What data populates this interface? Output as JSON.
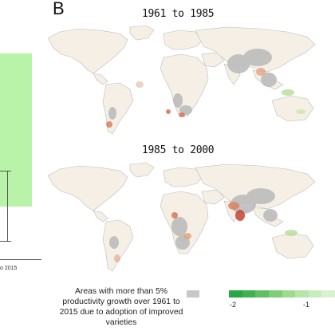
{
  "panel_a": {
    "tick_label": "o 2015"
  },
  "panel_b": {
    "letter": "B",
    "maps": [
      {
        "title": "1961 to 1985"
      },
      {
        "title": "1985 to 2000"
      }
    ],
    "legend": {
      "caption": "Areas with more than 5% productivity growth over 1961 to 2015 due to adoption of improved varieties",
      "gray_color": "#c8c8c8",
      "scale_colors": [
        "#28a745",
        "#3fb24f",
        "#5ec062",
        "#7fce77",
        "#9ddb8f",
        "#b6e5a9",
        "#c9ecbd",
        "#d8f2cf"
      ],
      "ticks": [
        "-2",
        "-1"
      ]
    }
  }
}
